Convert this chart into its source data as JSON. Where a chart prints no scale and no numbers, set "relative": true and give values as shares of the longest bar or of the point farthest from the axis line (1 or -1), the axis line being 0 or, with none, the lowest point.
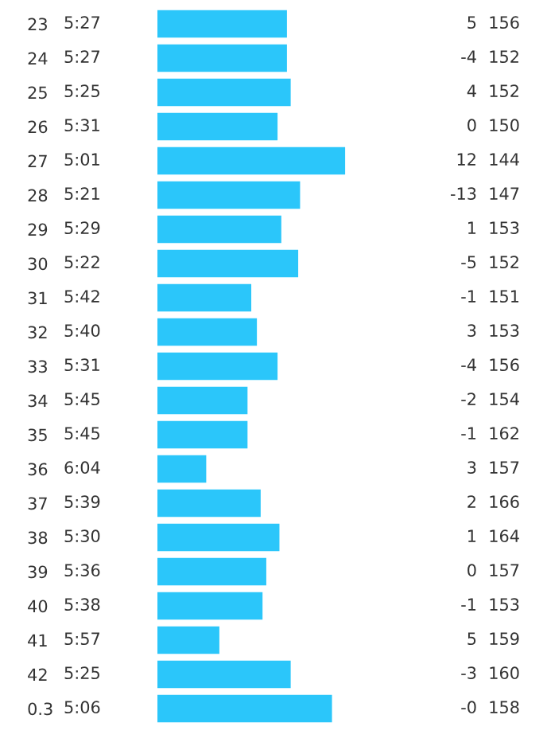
{
  "chart_data": [
    {
      "type": "bar",
      "orientation": "horizontal",
      "relative": true,
      "color": "#2bc6fa",
      "categories": [
        "23",
        "24",
        "25",
        "26",
        "27",
        "28",
        "29",
        "30",
        "31",
        "32",
        "33",
        "34",
        "35",
        "36",
        "37",
        "38",
        "39",
        "40",
        "41",
        "42",
        "0.3"
      ],
      "values": [
        0.69,
        0.69,
        0.71,
        0.64,
        1,
        0.76,
        0.66,
        0.75,
        0.5,
        0.53,
        0.64,
        0.48,
        0.48,
        0.26,
        0.55,
        0.65,
        0.58,
        0.56,
        0.33,
        0.71,
        0.93
      ]
    },
    {
      "type": "other",
      "annotations": [
        "5:27",
        "5:27",
        "5:25",
        "5:31",
        "5:01",
        "5:21",
        "5:29",
        "5:22",
        "5:42",
        "5:40",
        "5:31",
        "5:45",
        "5:45",
        "6:04",
        "5:39",
        "5:30",
        "5:36",
        "5:38",
        "5:57",
        "5:25",
        "5:06"
      ]
    },
    {
      "type": "other",
      "annotations": [
        "5",
        "-4",
        "4",
        "0",
        "12",
        "-13",
        "1",
        "-5",
        "-1",
        "3",
        "-4",
        "-2",
        "-1",
        "3",
        "2",
        "1",
        "0",
        "-1",
        "5",
        "-3",
        "-0"
      ]
    },
    {
      "type": "other",
      "annotations": [
        "156",
        "152",
        "152",
        "150",
        "144",
        "147",
        "153",
        "152",
        "151",
        "153",
        "156",
        "154",
        "162",
        "157",
        "166",
        "164",
        "157",
        "153",
        "159",
        "160",
        "158"
      ]
    }
  ]
}
